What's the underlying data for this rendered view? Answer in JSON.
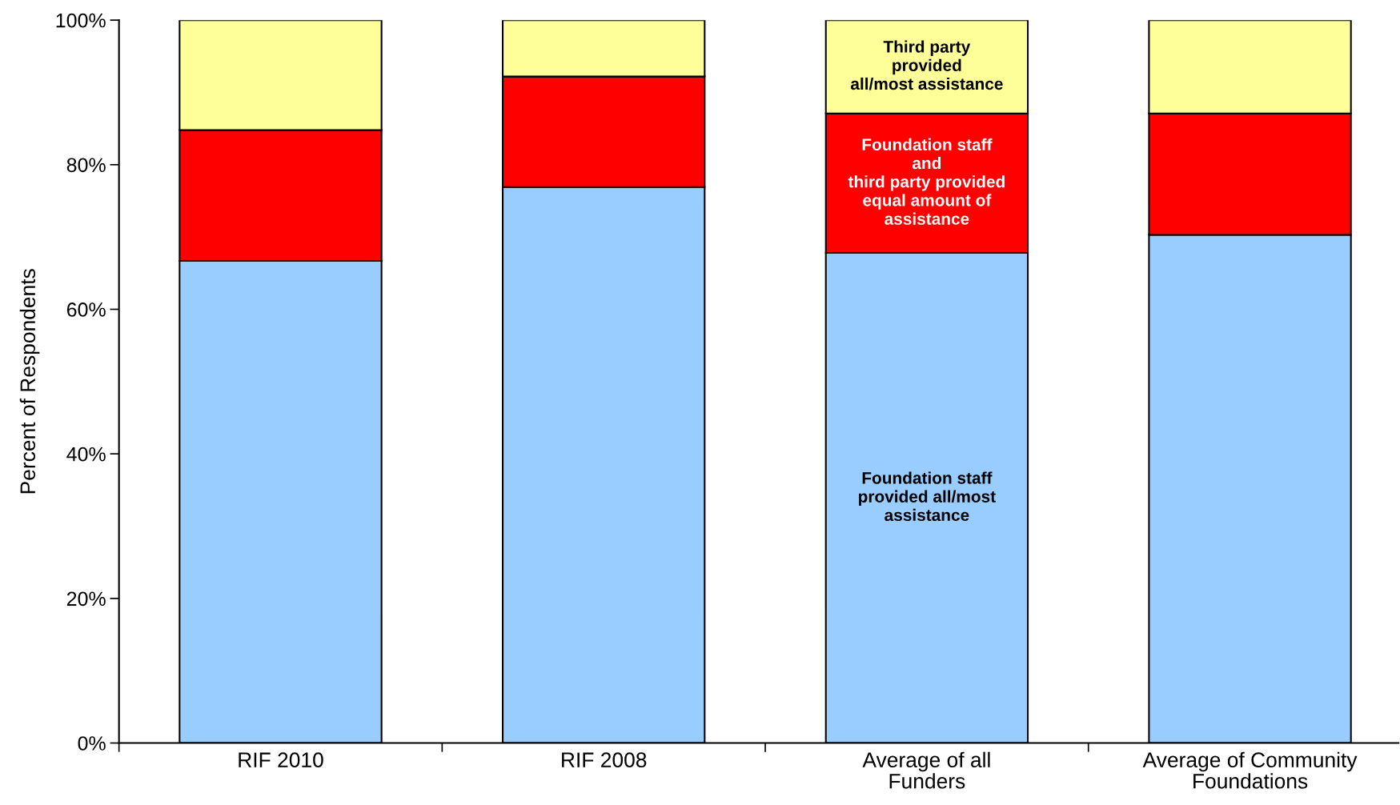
{
  "chart_data": {
    "type": "bar",
    "stacked": true,
    "ylabel": "Percent of Respondents",
    "categories": [
      "RIF 2010",
      "RIF 2008",
      "Average of all\nFunders",
      "Average of Community\nFoundations"
    ],
    "series": [
      {
        "name": "Foundation staff\nprovided all/most\nassistance",
        "color": "#99ccff",
        "values": [
          66.7,
          76.9,
          67.8,
          70.3
        ]
      },
      {
        "name": "Foundation staff\nand\nthird party provided\nequal amount of\nassistance",
        "color": "#ff0000",
        "values": [
          18.1,
          15.3,
          19.3,
          16.8
        ]
      },
      {
        "name": "Third party\nprovided\nall/most assistance",
        "color": "#ffff99",
        "values": [
          15.2,
          7.8,
          12.9,
          12.9
        ]
      }
    ],
    "ylim": [
      0,
      100
    ],
    "yticks": [
      {
        "value": 0,
        "label": "0%"
      },
      {
        "value": 20,
        "label": "20%"
      },
      {
        "value": 40,
        "label": "40%"
      },
      {
        "value": 60,
        "label": "60%"
      },
      {
        "value": 80,
        "label": "80%"
      },
      {
        "value": 100,
        "label": "100%"
      }
    ],
    "grid": false,
    "legend": false
  }
}
